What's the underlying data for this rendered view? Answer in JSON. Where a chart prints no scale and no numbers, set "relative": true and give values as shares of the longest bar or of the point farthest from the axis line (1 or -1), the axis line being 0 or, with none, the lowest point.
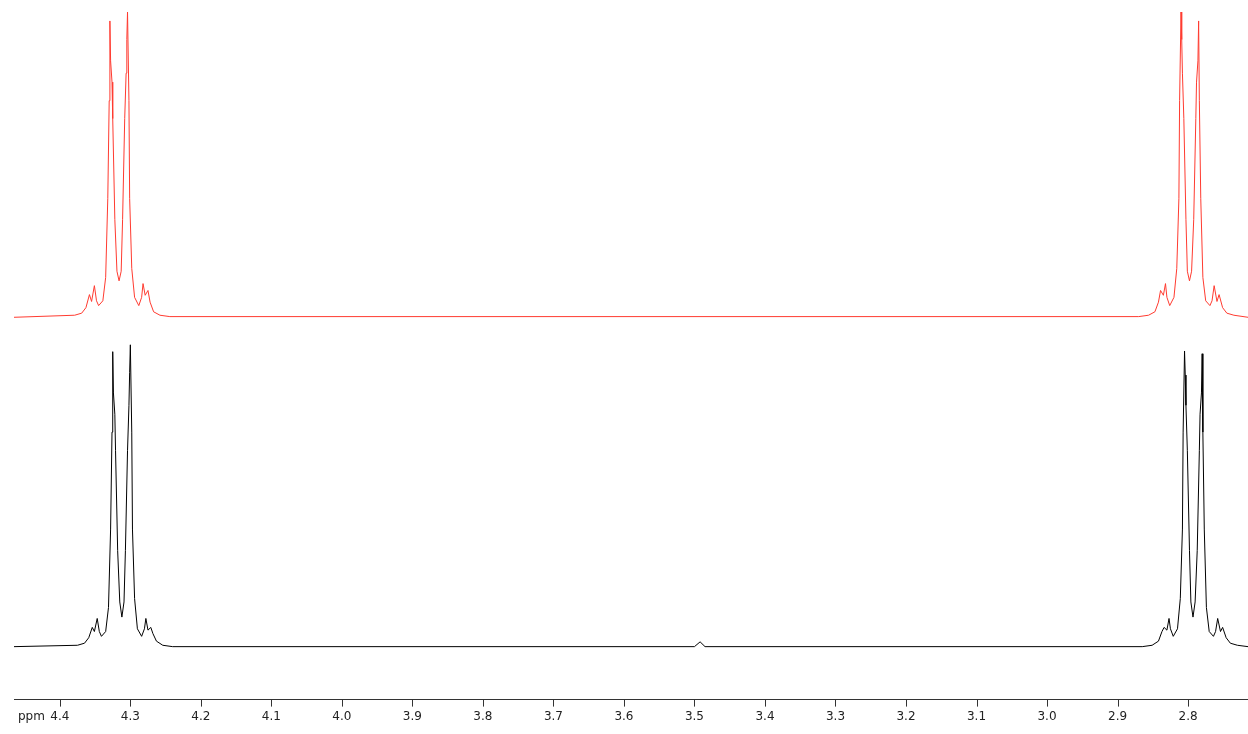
{
  "chart_data": {
    "type": "line",
    "relative": true,
    "tick_labels": "x",
    "xlabel": "ppm",
    "xlim": [
      4.465,
      2.715
    ],
    "xticks": [
      4.4,
      4.3,
      4.2,
      4.1,
      {
        "value": 4.0,
        "label": "4.0"
      },
      3.9,
      3.8,
      3.7,
      3.6,
      3.5,
      3.4,
      3.3,
      3.2,
      3.1,
      {
        "value": 3.0,
        "label": "3.0"
      },
      2.9,
      2.8
    ],
    "series": [
      {
        "color": "#ff3b30",
        "x": [
          4.465,
          4.379,
          4.369,
          4.363,
          4.358,
          4.355,
          4.351,
          4.348,
          4.345,
          4.339,
          4.335,
          4.332,
          4.33,
          4.329,
          4.328,
          4.326,
          4.325,
          4.322,
          4.319,
          4.316,
          4.313,
          4.311,
          4.308,
          4.306,
          4.305,
          4.304,
          4.302,
          4.301,
          4.298,
          4.294,
          4.288,
          4.284,
          4.282,
          4.279,
          4.275,
          4.272,
          4.267,
          4.258,
          4.244,
          2.87,
          2.856,
          2.847,
          2.842,
          2.839,
          2.835,
          2.832,
          2.83,
          2.826,
          2.82,
          2.816,
          2.813,
          2.812,
          2.81,
          2.809,
          2.808,
          2.806,
          2.803,
          2.801,
          2.798,
          2.795,
          2.792,
          2.789,
          2.788,
          2.786,
          2.785,
          2.784,
          2.782,
          2.779,
          2.775,
          2.769,
          2.766,
          2.763,
          2.759,
          2.756,
          2.751,
          2.745,
          2.735,
          2.715
        ],
        "values": [
          0.556,
          0.559,
          0.562,
          0.57,
          0.589,
          0.579,
          0.602,
          0.58,
          0.573,
          0.58,
          0.614,
          0.729,
          0.871,
          0.987,
          0.929,
          0.898,
          0.845,
          0.698,
          0.623,
          0.609,
          0.623,
          0.698,
          0.845,
          0.911,
          0.96,
          1.0,
          0.871,
          0.729,
          0.627,
          0.585,
          0.573,
          0.585,
          0.605,
          0.588,
          0.595,
          0.578,
          0.564,
          0.559,
          0.557,
          0.557,
          0.559,
          0.564,
          0.578,
          0.595,
          0.588,
          0.605,
          0.585,
          0.573,
          0.585,
          0.627,
          0.729,
          0.871,
          1.0,
          0.96,
          0.911,
          0.845,
          0.698,
          0.623,
          0.609,
          0.623,
          0.698,
          0.845,
          0.898,
          0.929,
          0.987,
          0.871,
          0.729,
          0.614,
          0.58,
          0.573,
          0.58,
          0.602,
          0.579,
          0.589,
          0.57,
          0.562,
          0.559,
          0.556
        ]
      },
      {
        "color": "#000000",
        "x": [
          4.465,
          4.375,
          4.365,
          4.359,
          4.354,
          4.351,
          4.347,
          4.344,
          4.341,
          4.335,
          4.331,
          4.328,
          4.326,
          4.325,
          4.324,
          4.322,
          4.321,
          4.318,
          4.315,
          4.312,
          4.309,
          4.307,
          4.304,
          4.302,
          4.301,
          4.3,
          4.298,
          4.297,
          4.294,
          4.29,
          4.284,
          4.28,
          4.278,
          4.275,
          4.271,
          4.268,
          4.263,
          4.254,
          4.24,
          3.5,
          3.492,
          3.485,
          2.865,
          2.851,
          2.842,
          2.837,
          2.834,
          2.83,
          2.827,
          2.825,
          2.821,
          2.815,
          2.811,
          2.808,
          2.807,
          2.805,
          2.804,
          2.803,
          2.801,
          2.798,
          2.796,
          2.793,
          2.79,
          2.787,
          2.784,
          2.783,
          2.781,
          2.78,
          2.779,
          2.777,
          2.774,
          2.77,
          2.764,
          2.761,
          2.758,
          2.754,
          2.751,
          2.746,
          2.74,
          2.73,
          2.715
        ],
        "values": [
          0.077,
          0.079,
          0.082,
          0.09,
          0.105,
          0.099,
          0.118,
          0.099,
          0.092,
          0.099,
          0.134,
          0.248,
          0.389,
          0.506,
          0.446,
          0.415,
          0.362,
          0.217,
          0.142,
          0.12,
          0.142,
          0.217,
          0.362,
          0.428,
          0.476,
          0.516,
          0.389,
          0.248,
          0.147,
          0.103,
          0.092,
          0.103,
          0.118,
          0.101,
          0.105,
          0.096,
          0.085,
          0.079,
          0.077,
          0.077,
          0.084,
          0.077,
          0.077,
          0.079,
          0.085,
          0.099,
          0.105,
          0.101,
          0.118,
          0.103,
          0.092,
          0.103,
          0.147,
          0.248,
          0.389,
          0.507,
          0.472,
          0.428,
          0.362,
          0.217,
          0.142,
          0.12,
          0.142,
          0.217,
          0.362,
          0.415,
          0.446,
          0.503,
          0.389,
          0.248,
          0.134,
          0.099,
          0.092,
          0.099,
          0.118,
          0.099,
          0.105,
          0.09,
          0.082,
          0.079,
          0.077
        ]
      }
    ]
  }
}
